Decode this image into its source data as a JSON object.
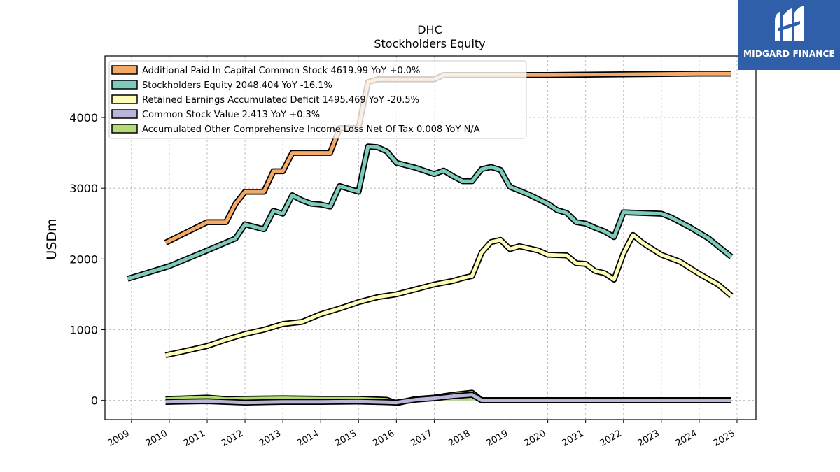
{
  "chart_data": {
    "type": "line",
    "title": "DHC",
    "subtitle": "Stockholders  Equity",
    "xlabel": "",
    "ylabel": "USDm",
    "xlim": [
      2008.3,
      2025.5
    ],
    "ylim": [
      -270,
      4870
    ],
    "x_ticks": [
      "2009",
      "2010",
      "2011",
      "2012",
      "2013",
      "2014",
      "2015",
      "2016",
      "2017",
      "2018",
      "2019",
      "2020",
      "2021",
      "2022",
      "2023",
      "2024",
      "2025"
    ],
    "y_ticks": [
      0,
      1000,
      2000,
      3000,
      4000
    ],
    "grid": true,
    "legend_position": "top-left",
    "series": [
      {
        "name": "Additional Paid In Capital Common Stock  4619.99 YoY +0.0%",
        "color": "#f5a966",
        "points": [
          [
            2009.9,
            2230
          ],
          [
            2011.0,
            2520
          ],
          [
            2011.5,
            2520
          ],
          [
            2011.75,
            2780
          ],
          [
            2012.0,
            2950
          ],
          [
            2012.5,
            2950
          ],
          [
            2012.75,
            3240
          ],
          [
            2013.0,
            3240
          ],
          [
            2013.25,
            3500
          ],
          [
            2014.0,
            3500
          ],
          [
            2014.25,
            3500
          ],
          [
            2014.5,
            3850
          ],
          [
            2015.0,
            3850
          ],
          [
            2015.25,
            4500
          ],
          [
            2015.5,
            4540
          ],
          [
            2016.0,
            4540
          ],
          [
            2016.5,
            4540
          ],
          [
            2017.0,
            4540
          ],
          [
            2017.25,
            4600
          ],
          [
            2018.0,
            4600
          ],
          [
            2019.0,
            4600
          ],
          [
            2020.0,
            4600
          ],
          [
            2021.0,
            4605
          ],
          [
            2022.0,
            4610
          ],
          [
            2023.0,
            4615
          ],
          [
            2024.0,
            4620
          ],
          [
            2024.85,
            4620
          ]
        ]
      },
      {
        "name": "Stockholders Equity  2048.404 YoY -16.1%",
        "color": "#7ccbbd",
        "points": [
          [
            2008.9,
            1720
          ],
          [
            2010.0,
            1900
          ],
          [
            2011.0,
            2120
          ],
          [
            2011.75,
            2290
          ],
          [
            2012.0,
            2490
          ],
          [
            2012.5,
            2420
          ],
          [
            2012.75,
            2680
          ],
          [
            2013.0,
            2640
          ],
          [
            2013.25,
            2900
          ],
          [
            2013.5,
            2830
          ],
          [
            2013.75,
            2780
          ],
          [
            2014.0,
            2770
          ],
          [
            2014.25,
            2740
          ],
          [
            2014.5,
            3030
          ],
          [
            2015.0,
            2950
          ],
          [
            2015.25,
            3590
          ],
          [
            2015.5,
            3580
          ],
          [
            2015.75,
            3520
          ],
          [
            2016.0,
            3360
          ],
          [
            2016.5,
            3290
          ],
          [
            2017.0,
            3200
          ],
          [
            2017.25,
            3250
          ],
          [
            2017.5,
            3170
          ],
          [
            2017.75,
            3100
          ],
          [
            2018.0,
            3100
          ],
          [
            2018.25,
            3270
          ],
          [
            2018.5,
            3300
          ],
          [
            2018.75,
            3260
          ],
          [
            2019.0,
            3020
          ],
          [
            2019.5,
            2910
          ],
          [
            2020.0,
            2780
          ],
          [
            2020.25,
            2690
          ],
          [
            2020.5,
            2650
          ],
          [
            2020.75,
            2520
          ],
          [
            2021.0,
            2500
          ],
          [
            2021.25,
            2440
          ],
          [
            2021.5,
            2390
          ],
          [
            2021.75,
            2310
          ],
          [
            2022.0,
            2660
          ],
          [
            2023.0,
            2640
          ],
          [
            2023.25,
            2590
          ],
          [
            2023.75,
            2450
          ],
          [
            2024.25,
            2290
          ],
          [
            2024.85,
            2030
          ]
        ]
      },
      {
        "name": "Retained Earnings Accumulated Deficit  1495.469 YoY -20.5%",
        "color": "#fefdb8",
        "points": [
          [
            2009.9,
            640
          ],
          [
            2010.5,
            710
          ],
          [
            2011.0,
            770
          ],
          [
            2011.5,
            860
          ],
          [
            2012.0,
            940
          ],
          [
            2012.5,
            1000
          ],
          [
            2013.0,
            1080
          ],
          [
            2013.5,
            1110
          ],
          [
            2014.0,
            1220
          ],
          [
            2014.5,
            1300
          ],
          [
            2015.0,
            1390
          ],
          [
            2015.5,
            1460
          ],
          [
            2016.0,
            1500
          ],
          [
            2016.5,
            1570
          ],
          [
            2017.0,
            1640
          ],
          [
            2017.5,
            1690
          ],
          [
            2017.75,
            1730
          ],
          [
            2018.0,
            1760
          ],
          [
            2018.25,
            2090
          ],
          [
            2018.5,
            2240
          ],
          [
            2018.75,
            2270
          ],
          [
            2019.0,
            2140
          ],
          [
            2019.25,
            2180
          ],
          [
            2019.75,
            2120
          ],
          [
            2020.0,
            2060
          ],
          [
            2020.5,
            2050
          ],
          [
            2020.75,
            1940
          ],
          [
            2021.0,
            1930
          ],
          [
            2021.25,
            1830
          ],
          [
            2021.5,
            1800
          ],
          [
            2021.75,
            1710
          ],
          [
            2022.0,
            2080
          ],
          [
            2022.25,
            2340
          ],
          [
            2022.5,
            2230
          ],
          [
            2023.0,
            2060
          ],
          [
            2023.5,
            1960
          ],
          [
            2024.0,
            1790
          ],
          [
            2024.5,
            1640
          ],
          [
            2024.85,
            1480
          ]
        ]
      },
      {
        "name": "Common Stock Value  2.413 YoY +0.3%",
        "color": "#b8b5d6",
        "points": [
          [
            2009.9,
            -20
          ],
          [
            2011.0,
            -10
          ],
          [
            2011.5,
            -20
          ],
          [
            2012.0,
            -30
          ],
          [
            2013.0,
            -20
          ],
          [
            2014.0,
            -20
          ],
          [
            2015.0,
            -15
          ],
          [
            2015.75,
            -25
          ],
          [
            2016.0,
            -30
          ],
          [
            2016.5,
            10
          ],
          [
            2017.0,
            30
          ],
          [
            2017.5,
            60
          ],
          [
            2018.0,
            80
          ],
          [
            2018.25,
            2
          ],
          [
            2019.0,
            2
          ],
          [
            2020.0,
            2
          ],
          [
            2021.0,
            2
          ],
          [
            2022.0,
            2
          ],
          [
            2023.0,
            2
          ],
          [
            2024.0,
            2
          ],
          [
            2024.85,
            2
          ]
        ]
      },
      {
        "name": "Accumulated Other Comprehensive Income Loss Net Of Tax  0.008 YoY N/A",
        "color": "#b5dc74",
        "points": [
          [
            2009.9,
            20
          ],
          [
            2011.0,
            40
          ],
          [
            2011.5,
            20
          ],
          [
            2012.0,
            25
          ],
          [
            2013.0,
            30
          ],
          [
            2014.0,
            25
          ],
          [
            2015.0,
            25
          ],
          [
            2015.75,
            10
          ],
          [
            2016.0,
            -40
          ],
          [
            2016.5,
            20
          ],
          [
            2017.0,
            40
          ],
          [
            2017.5,
            80
          ],
          [
            2018.0,
            110
          ],
          [
            2018.25,
            5
          ],
          [
            2019.0,
            5
          ],
          [
            2020.0,
            5
          ],
          [
            2021.0,
            5
          ],
          [
            2022.0,
            5
          ],
          [
            2023.0,
            5
          ],
          [
            2024.0,
            5
          ],
          [
            2024.85,
            5
          ]
        ]
      }
    ]
  },
  "watermark": {
    "brand": "MIDGARD FINANCE",
    "color": "#2f5fa8"
  }
}
